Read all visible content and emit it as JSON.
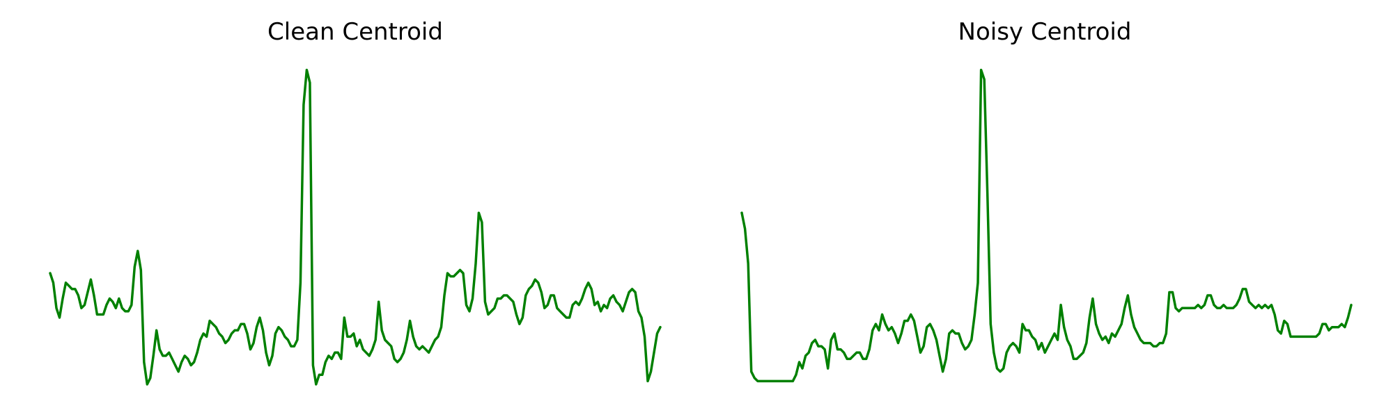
{
  "chart_data": [
    {
      "type": "line",
      "title": "Clean Centroid",
      "xlabel": "",
      "ylabel": "",
      "grid": false,
      "axes_visible": false,
      "legend": "none",
      "color": "#008000",
      "ylim": [
        0,
        100
      ],
      "y": [
        35,
        32,
        24,
        21,
        27,
        32,
        31,
        30,
        30,
        28,
        24,
        25,
        29,
        33,
        28,
        22,
        22,
        22,
        25,
        27,
        26,
        24,
        27,
        24,
        23,
        23,
        25,
        37,
        42,
        36,
        7,
        0,
        2,
        9,
        17,
        11,
        9,
        9,
        10,
        8,
        6,
        4,
        7,
        9,
        8,
        6,
        7,
        10,
        14,
        16,
        15,
        20,
        19,
        18,
        16,
        15,
        13,
        14,
        16,
        17,
        17,
        19,
        19,
        16,
        11,
        13,
        18,
        21,
        17,
        10,
        6,
        9,
        16,
        18,
        17,
        15,
        14,
        12,
        12,
        14,
        32,
        88,
        99,
        95,
        6,
        0,
        3,
        3,
        7,
        9,
        8,
        10,
        10,
        8,
        21,
        15,
        15,
        16,
        12,
        14,
        11,
        10,
        9,
        11,
        14,
        26,
        17,
        14,
        13,
        12,
        8,
        7,
        8,
        10,
        14,
        20,
        15,
        12,
        11,
        12,
        11,
        10,
        12,
        14,
        15,
        18,
        28,
        35,
        34,
        34,
        35,
        36,
        35,
        25,
        23,
        27,
        38,
        54,
        51,
        26,
        22,
        23,
        24,
        27,
        27,
        28,
        28,
        27,
        26,
        22,
        19,
        21,
        28,
        30,
        31,
        33,
        32,
        29,
        24,
        25,
        28,
        28,
        24,
        23,
        22,
        21,
        21,
        25,
        26,
        25,
        27,
        30,
        32,
        30,
        25,
        26,
        23,
        25,
        24,
        27,
        28,
        26,
        25,
        23,
        26,
        29,
        30,
        29,
        23,
        21,
        15,
        1,
        4,
        10,
        16,
        18
      ]
    },
    {
      "type": "line",
      "title": "Noisy Centroid",
      "xlabel": "",
      "ylabel": "",
      "grid": false,
      "axes_visible": false,
      "legend": "none",
      "color": "#008000",
      "ylim": [
        0,
        100
      ],
      "y": [
        54,
        49,
        38,
        4,
        2,
        1,
        1,
        1,
        1,
        1,
        1,
        1,
        1,
        1,
        1,
        1,
        1,
        3,
        7,
        5,
        9,
        10,
        13,
        14,
        12,
        12,
        11,
        5,
        14,
        16,
        11,
        11,
        10,
        8,
        8,
        9,
        10,
        10,
        8,
        8,
        11,
        17,
        19,
        17,
        22,
        19,
        17,
        18,
        16,
        13,
        16,
        20,
        20,
        22,
        20,
        15,
        10,
        12,
        18,
        19,
        17,
        14,
        9,
        4,
        8,
        16,
        17,
        16,
        16,
        13,
        11,
        12,
        14,
        22,
        32,
        99,
        96,
        60,
        19,
        10,
        5,
        4,
        5,
        10,
        12,
        13,
        12,
        10,
        19,
        17,
        17,
        15,
        14,
        11,
        13,
        10,
        12,
        14,
        16,
        14,
        25,
        18,
        14,
        12,
        8,
        8,
        9,
        10,
        13,
        21,
        27,
        19,
        16,
        14,
        15,
        13,
        16,
        15,
        17,
        19,
        24,
        28,
        22,
        18,
        16,
        14,
        13,
        13,
        13,
        12,
        12,
        13,
        13,
        16,
        29,
        29,
        24,
        23,
        24,
        24,
        24,
        24,
        24,
        25,
        24,
        25,
        28,
        28,
        25,
        24,
        24,
        25,
        24,
        24,
        24,
        25,
        27,
        30,
        30,
        26,
        25,
        24,
        25,
        24,
        25,
        24,
        25,
        22,
        17,
        16,
        20,
        19,
        15,
        15,
        15,
        15,
        15,
        15,
        15,
        15,
        15,
        16,
        19,
        19,
        17,
        18,
        18,
        18,
        19,
        18,
        21,
        25
      ]
    }
  ]
}
